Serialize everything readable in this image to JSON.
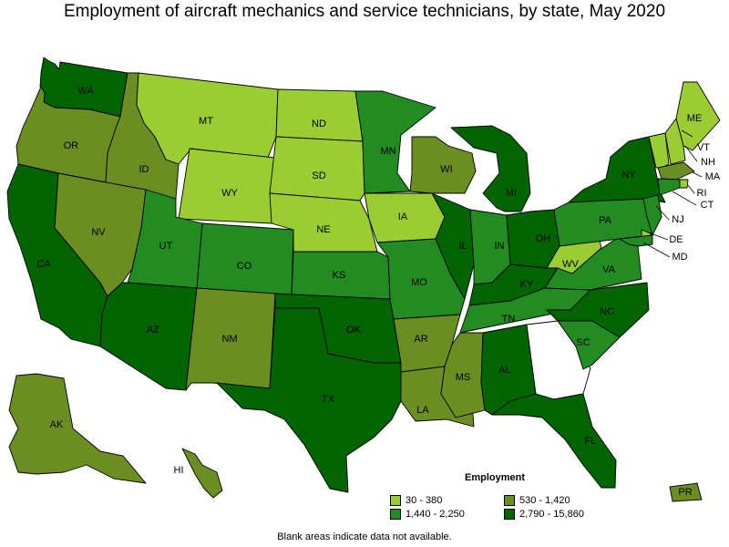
{
  "title": "Employment of aircraft mechanics and service technicians, by state, May 2020",
  "legend": {
    "title": "Employment",
    "items": [
      {
        "range": "30 - 380",
        "color": "#9acd32"
      },
      {
        "range": "530 - 1,420",
        "color": "#6b8e23"
      },
      {
        "range": "1,440 - 2,250",
        "color": "#228b22"
      },
      {
        "range": "2,790 - 15,860",
        "color": "#006400"
      }
    ]
  },
  "footnote": "Blank areas indicate data not available.",
  "states": {
    "WA": {
      "label": "WA",
      "class": 3
    },
    "OR": {
      "label": "OR",
      "class": 1
    },
    "CA": {
      "label": "CA",
      "class": 3
    },
    "ID": {
      "label": "ID",
      "class": 1
    },
    "NV": {
      "label": "NV",
      "class": 1
    },
    "MT": {
      "label": "MT",
      "class": 0
    },
    "WY": {
      "label": "WY",
      "class": 0
    },
    "UT": {
      "label": "UT",
      "class": 2
    },
    "AZ": {
      "label": "AZ",
      "class": 3
    },
    "CO": {
      "label": "CO",
      "class": 2
    },
    "NM": {
      "label": "NM",
      "class": 1
    },
    "ND": {
      "label": "ND",
      "class": 0
    },
    "SD": {
      "label": "SD",
      "class": 0
    },
    "NE": {
      "label": "NE",
      "class": 0
    },
    "KS": {
      "label": "KS",
      "class": 2
    },
    "OK": {
      "label": "OK",
      "class": 3
    },
    "TX": {
      "label": "TX",
      "class": 3
    },
    "MN": {
      "label": "MN",
      "class": 2
    },
    "IA": {
      "label": "IA",
      "class": 0
    },
    "MO": {
      "label": "MO",
      "class": 2
    },
    "AR": {
      "label": "AR",
      "class": 1
    },
    "LA": {
      "label": "LA",
      "class": 1
    },
    "WI": {
      "label": "WI",
      "class": 1
    },
    "IL": {
      "label": "IL",
      "class": 3
    },
    "MI": {
      "label": "MI",
      "class": 3
    },
    "IN": {
      "label": "IN",
      "class": 2
    },
    "OH": {
      "label": "OH",
      "class": 3
    },
    "KY": {
      "label": "KY",
      "class": 3
    },
    "TN": {
      "label": "TN",
      "class": 2
    },
    "MS": {
      "label": "MS",
      "class": 1
    },
    "AL": {
      "label": "AL",
      "class": 3
    },
    "GA": {
      "label": "",
      "class": -1
    },
    "FL": {
      "label": "FL",
      "class": 3
    },
    "SC": {
      "label": "SC",
      "class": 2
    },
    "NC": {
      "label": "NC",
      "class": 3
    },
    "VA": {
      "label": "VA",
      "class": 2
    },
    "WV": {
      "label": "WV",
      "class": 0
    },
    "PA": {
      "label": "PA",
      "class": 2
    },
    "NY": {
      "label": "NY",
      "class": 3
    },
    "ME": {
      "label": "ME",
      "class": 0
    },
    "VT": {
      "label": "VT",
      "class": 0
    },
    "NH": {
      "label": "NH",
      "class": 0
    },
    "MA": {
      "label": "MA",
      "class": 1
    },
    "RI": {
      "label": "RI",
      "class": 0
    },
    "CT": {
      "label": "CT",
      "class": 2
    },
    "NJ": {
      "label": "NJ",
      "class": 2
    },
    "DE": {
      "label": "DE",
      "class": 0
    },
    "MD": {
      "label": "MD",
      "class": 2
    },
    "AK": {
      "label": "AK",
      "class": 1
    },
    "HI": {
      "label": "HI",
      "class": 1
    },
    "PR": {
      "label": "PR",
      "class": 1
    }
  }
}
